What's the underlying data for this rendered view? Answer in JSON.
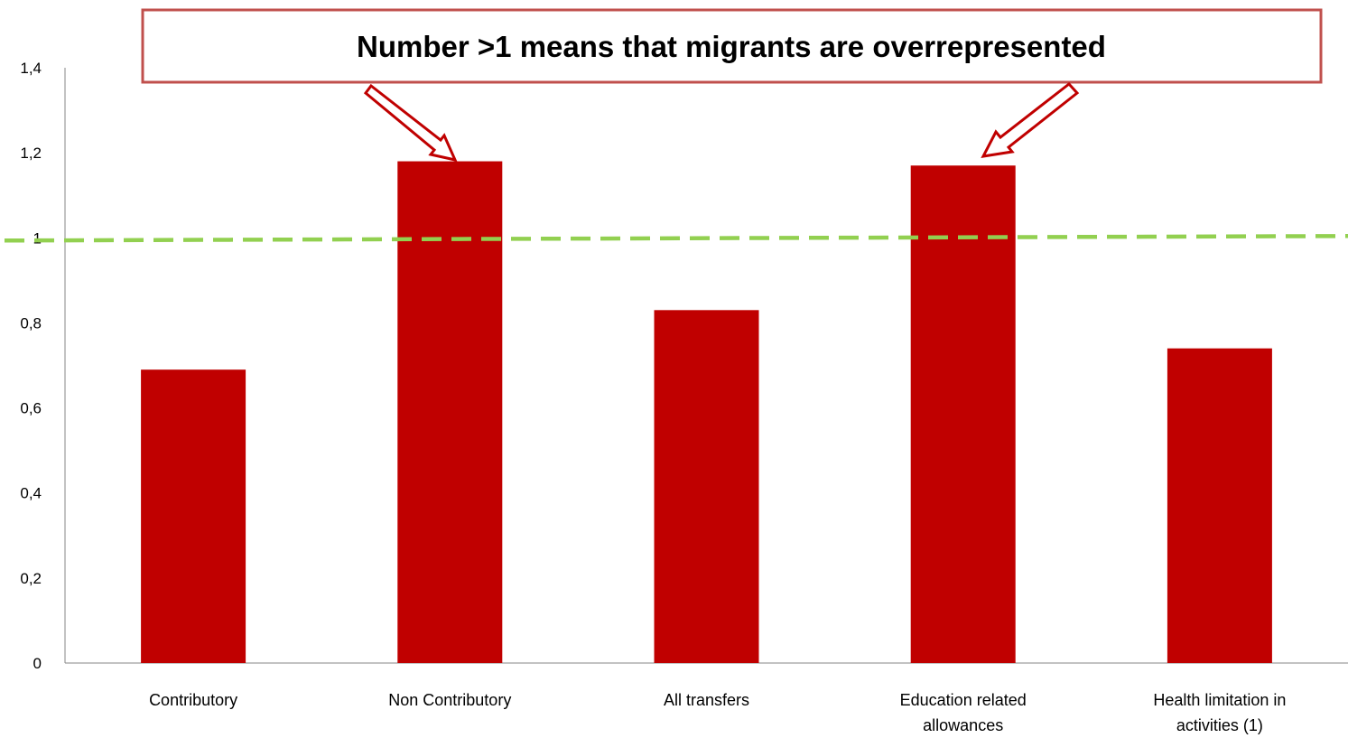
{
  "chart_data": {
    "type": "bar",
    "categories": [
      "Contributory",
      "Non Contributory",
      "All transfers",
      "Education related allowances",
      "Health limitation in activities (1)"
    ],
    "category_lines": [
      [
        "Contributory"
      ],
      [
        "Non Contributory"
      ],
      [
        "All transfers"
      ],
      [
        "Education related",
        "allowances"
      ],
      [
        "Health limitation in",
        "activities (1)"
      ]
    ],
    "values": [
      0.69,
      1.18,
      0.83,
      1.17,
      0.74
    ],
    "ylim": [
      0,
      1.4
    ],
    "yticks": [
      "0",
      "0,2",
      "0,4",
      "0,6",
      "0,8",
      "1",
      "1,2",
      "1,4"
    ],
    "reference_line": 1,
    "annotation": "Number >1 means that migrants are overrepresented",
    "grid": false,
    "legend": "none"
  },
  "colors": {
    "bar": "#c00000",
    "reference_line": "#92d050",
    "callout_border": "#c0504d"
  }
}
